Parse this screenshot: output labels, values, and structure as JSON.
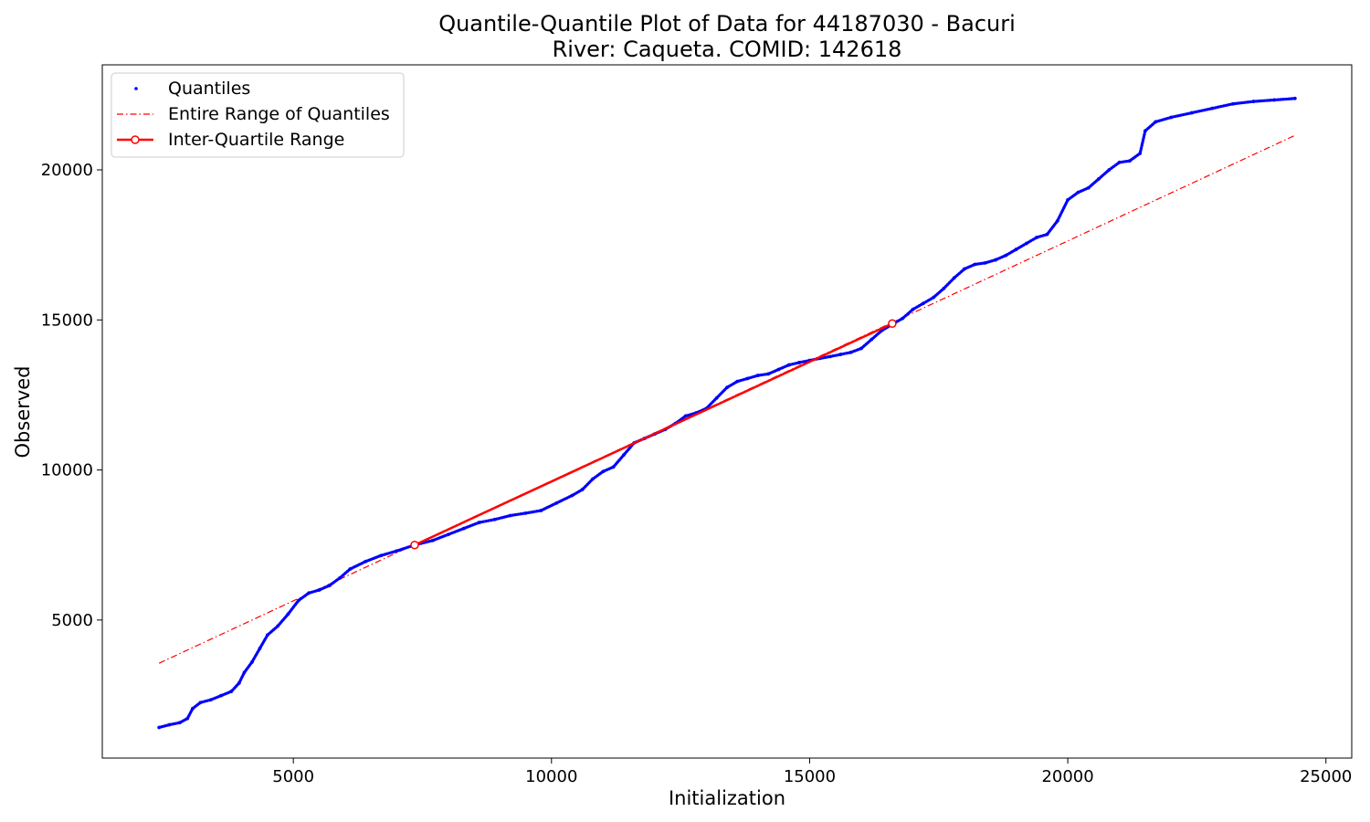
{
  "chart_data": {
    "type": "scatter",
    "title": "Quantile-Quantile Plot of Data for 44187030 - Bacuri",
    "subtitle": "River: Caqueta. COMID: 142618",
    "xlabel": "Initialization",
    "ylabel": "Observed",
    "xlim": [
      1300,
      25500
    ],
    "ylim": [
      400,
      23500
    ],
    "xticks": [
      5000,
      10000,
      15000,
      20000,
      25000
    ],
    "yticks": [
      5000,
      10000,
      15000,
      20000
    ],
    "grid": false,
    "legend_position": "upper-left",
    "colors": {
      "quantiles": "#0000ff",
      "range_line": "#ff0000",
      "iqr_line": "#ff0000"
    },
    "series": [
      {
        "name": "Quantiles",
        "style": "points",
        "points": [
          [
            2400,
            1420
          ],
          [
            2600,
            1510
          ],
          [
            2800,
            1580
          ],
          [
            2950,
            1720
          ],
          [
            3050,
            2050
          ],
          [
            3200,
            2250
          ],
          [
            3400,
            2340
          ],
          [
            3600,
            2480
          ],
          [
            3800,
            2620
          ],
          [
            3950,
            2900
          ],
          [
            4050,
            3250
          ],
          [
            4200,
            3600
          ],
          [
            4350,
            4050
          ],
          [
            4500,
            4500
          ],
          [
            4700,
            4800
          ],
          [
            4900,
            5200
          ],
          [
            5100,
            5650
          ],
          [
            5300,
            5900
          ],
          [
            5500,
            6000
          ],
          [
            5700,
            6150
          ],
          [
            5900,
            6400
          ],
          [
            6100,
            6700
          ],
          [
            6400,
            6950
          ],
          [
            6700,
            7150
          ],
          [
            7000,
            7300
          ],
          [
            7350,
            7500
          ],
          [
            7700,
            7650
          ],
          [
            8000,
            7850
          ],
          [
            8300,
            8050
          ],
          [
            8600,
            8250
          ],
          [
            8900,
            8350
          ],
          [
            9200,
            8480
          ],
          [
            9500,
            8560
          ],
          [
            9800,
            8650
          ],
          [
            10100,
            8900
          ],
          [
            10400,
            9150
          ],
          [
            10600,
            9350
          ],
          [
            10800,
            9700
          ],
          [
            11000,
            9950
          ],
          [
            11200,
            10100
          ],
          [
            11400,
            10500
          ],
          [
            11600,
            10900
          ],
          [
            11800,
            11050
          ],
          [
            12000,
            11200
          ],
          [
            12200,
            11350
          ],
          [
            12400,
            11550
          ],
          [
            12600,
            11800
          ],
          [
            12800,
            11900
          ],
          [
            13000,
            12050
          ],
          [
            13200,
            12400
          ],
          [
            13400,
            12750
          ],
          [
            13600,
            12950
          ],
          [
            13800,
            13050
          ],
          [
            14000,
            13150
          ],
          [
            14200,
            13200
          ],
          [
            14400,
            13350
          ],
          [
            14600,
            13500
          ],
          [
            14800,
            13580
          ],
          [
            15000,
            13650
          ],
          [
            15200,
            13720
          ],
          [
            15400,
            13780
          ],
          [
            15600,
            13850
          ],
          [
            15800,
            13920
          ],
          [
            16000,
            14050
          ],
          [
            16200,
            14350
          ],
          [
            16400,
            14650
          ],
          [
            16600,
            14850
          ],
          [
            16800,
            15050
          ],
          [
            17000,
            15350
          ],
          [
            17200,
            15550
          ],
          [
            17400,
            15750
          ],
          [
            17600,
            16050
          ],
          [
            17800,
            16400
          ],
          [
            18000,
            16700
          ],
          [
            18200,
            16850
          ],
          [
            18400,
            16900
          ],
          [
            18600,
            17000
          ],
          [
            18800,
            17150
          ],
          [
            19000,
            17350
          ],
          [
            19200,
            17550
          ],
          [
            19400,
            17750
          ],
          [
            19600,
            17850
          ],
          [
            19800,
            18300
          ],
          [
            20000,
            19000
          ],
          [
            20200,
            19250
          ],
          [
            20400,
            19400
          ],
          [
            20600,
            19700
          ],
          [
            20800,
            20000
          ],
          [
            21000,
            20250
          ],
          [
            21200,
            20300
          ],
          [
            21400,
            20550
          ],
          [
            21500,
            21300
          ],
          [
            21700,
            21600
          ],
          [
            22000,
            21750
          ],
          [
            22400,
            21900
          ],
          [
            22800,
            22050
          ],
          [
            23200,
            22200
          ],
          [
            23600,
            22280
          ],
          [
            24000,
            22330
          ],
          [
            24400,
            22380
          ]
        ]
      },
      {
        "name": "Entire Range of Quantiles",
        "style": "dashdot-line",
        "points": [
          [
            2400,
            3560
          ],
          [
            24400,
            21150
          ]
        ]
      },
      {
        "name": "Inter-Quartile Range",
        "style": "line-with-markers",
        "points": [
          [
            7350,
            7500
          ],
          [
            16600,
            14880
          ]
        ]
      }
    ]
  }
}
